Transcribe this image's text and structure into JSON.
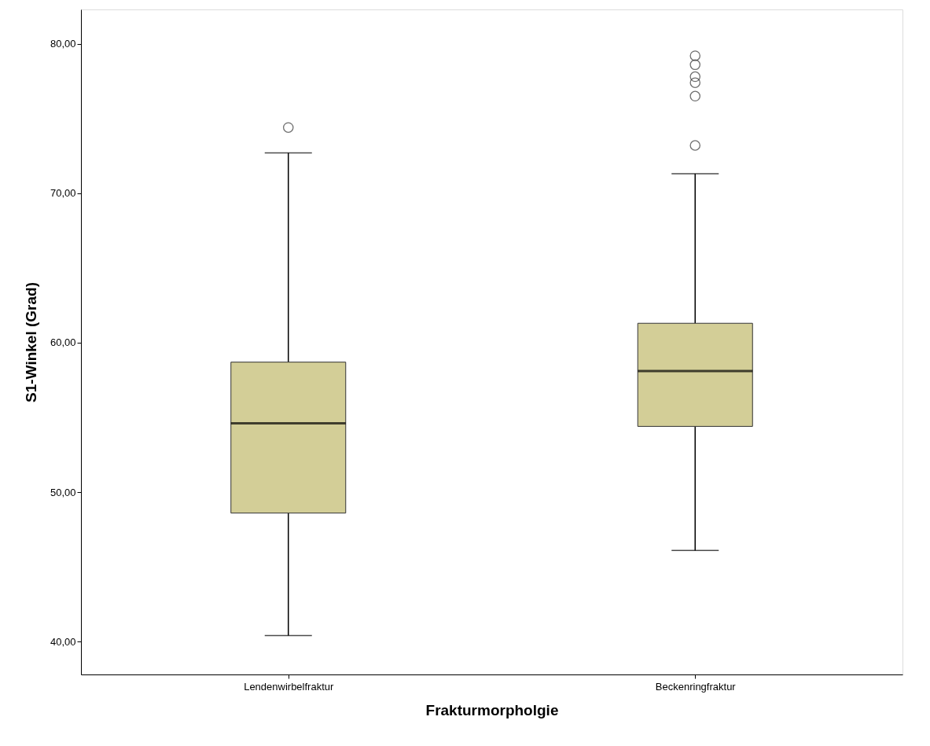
{
  "chart_data": {
    "type": "box",
    "xlabel": "Frakturmorpholgie",
    "ylabel": "S1-Winkel (Grad)",
    "categories": [
      "Lendenwirbelfraktur",
      "Beckenringfraktur"
    ],
    "boxes": [
      {
        "low": 40.4,
        "q1": 48.6,
        "median": 54.6,
        "q3": 58.7,
        "high": 72.7,
        "outliers": [
          74.4
        ]
      },
      {
        "low": 46.1,
        "q1": 54.4,
        "median": 58.1,
        "q3": 61.3,
        "high": 71.3,
        "outliers": [
          73.2,
          76.5,
          77.4,
          77.8,
          78.6,
          79.2
        ]
      }
    ],
    "color": "#d3ce97",
    "ylim": [
      37.8,
      82.3
    ],
    "yticks": [
      {
        "value": 40,
        "label": "40,00"
      },
      {
        "value": 50,
        "label": "50,00"
      },
      {
        "value": 60,
        "label": "60,00"
      },
      {
        "value": 70,
        "label": "70,00"
      },
      {
        "value": 80,
        "label": "80,00"
      }
    ],
    "grid": false
  }
}
